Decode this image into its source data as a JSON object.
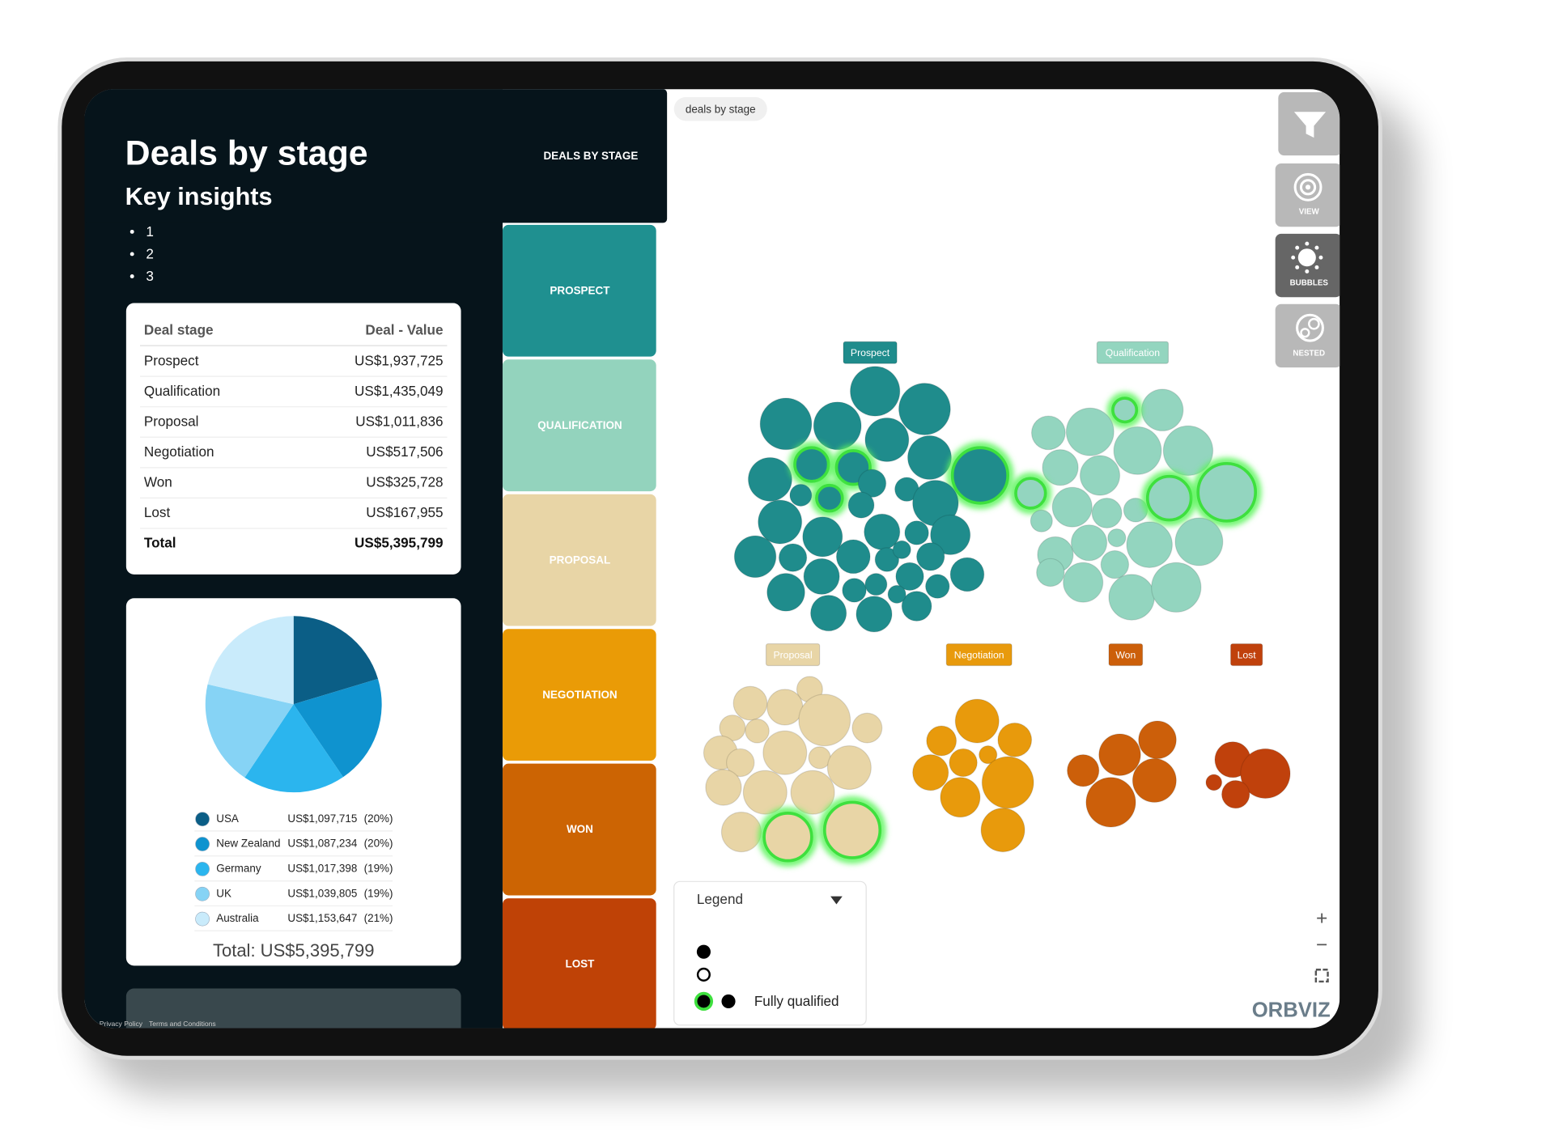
{
  "sidebar": {
    "title": "Deals by stage",
    "subtitle": "Key insights",
    "bullets": [
      "1",
      "2",
      "3"
    ]
  },
  "tab_label": "DEALS BY STAGE",
  "breadcrumb": "deals by stage",
  "table": {
    "header": [
      "Deal stage",
      "Deal - Value"
    ],
    "rows": [
      [
        "Prospect",
        "US$1,937,725"
      ],
      [
        "Qualification",
        "US$1,435,049"
      ],
      [
        "Proposal",
        "US$1,011,836"
      ],
      [
        "Negotiation",
        "US$517,506"
      ],
      [
        "Won",
        "US$325,728"
      ],
      [
        "Lost",
        "US$167,955"
      ]
    ],
    "total": [
      "Total",
      "US$5,395,799"
    ]
  },
  "chart_data": {
    "type": "pie",
    "categories": [
      "USA",
      "New Zealand",
      "Germany",
      "UK",
      "Australia"
    ],
    "values": [
      1097715,
      1087234,
      1017398,
      1039805,
      1153647
    ],
    "value_labels": [
      "US$1,097,715",
      "US$1,087,234",
      "US$1,017,398",
      "US$1,039,805",
      "US$1,153,647"
    ],
    "percent_labels": [
      "(20%)",
      "(20%)",
      "(19%)",
      "(19%)",
      "(21%)"
    ],
    "colors": [
      "#0b5e86",
      "#0f93cf",
      "#2bb5ee",
      "#86d3f5",
      "#c9ebfb"
    ],
    "total": "Total: US$5,395,799"
  },
  "stages": [
    {
      "label": "PROSPECT",
      "color": "#1f9090"
    },
    {
      "label": "QUALIFICATION",
      "color": "#93d3bd"
    },
    {
      "label": "PROPOSAL",
      "color": "#e8d5a6"
    },
    {
      "label": "NEGOTIATION",
      "color": "#ea9b06"
    },
    {
      "label": "WON",
      "color": "#cc6403"
    },
    {
      "label": "LOST",
      "color": "#bf4206"
    }
  ],
  "bubble_groups": [
    {
      "label": "Prospect",
      "color": "#1f8c8c"
    },
    {
      "label": "Qualification",
      "color": "#93d5bf"
    },
    {
      "label": "Proposal",
      "color": "#e8d5a6"
    },
    {
      "label": "Negotiation",
      "color": "#e89a0c"
    },
    {
      "label": "Won",
      "color": "#cc5f0a"
    },
    {
      "label": "Lost",
      "color": "#c0410c"
    }
  ],
  "toolbar": [
    "VIEW",
    "BUBBLES",
    "NESTED"
  ],
  "legend": {
    "title": "Legend",
    "item": "Fully qualified"
  },
  "zoom": [
    "+",
    "−"
  ],
  "brand": "ORBVIZ",
  "footer": [
    "Privacy Policy",
    "Terms and Conditions"
  ]
}
